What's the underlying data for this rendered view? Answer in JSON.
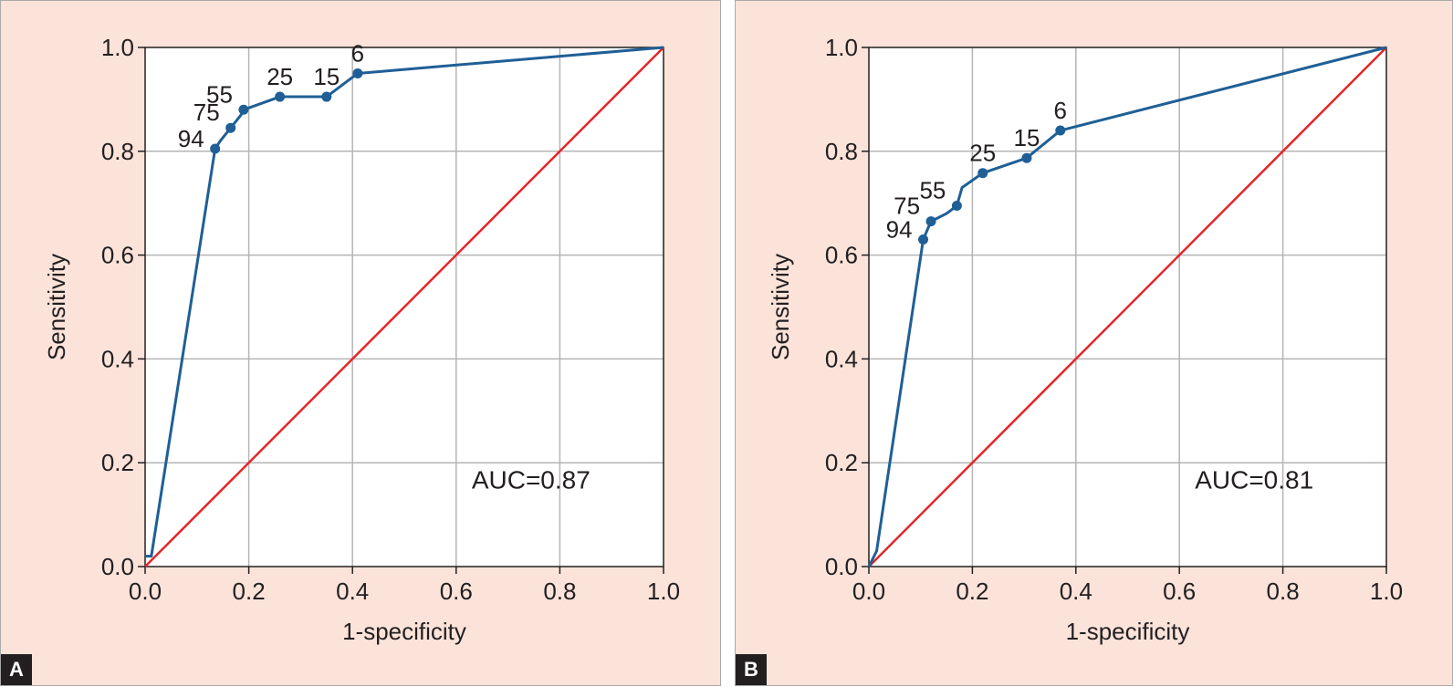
{
  "chart_data": [
    {
      "type": "line",
      "panel": "A",
      "xlabel": "1-specificity",
      "ylabel": "Sensitivity",
      "xlim": [
        0,
        1
      ],
      "ylim": [
        0,
        1
      ],
      "xticks": [
        "0.0",
        "0.2",
        "0.4",
        "0.6",
        "0.8",
        "1.0"
      ],
      "yticks": [
        "0.0",
        "0.2",
        "0.4",
        "0.6",
        "0.8",
        "1.0"
      ],
      "grid": true,
      "annotation": "AUC=0.87",
      "colors": {
        "roc": "#1f5f96",
        "reference": "#e3262b"
      },
      "roc_line": [
        [
          0.0,
          0.02
        ],
        [
          0.012,
          0.02
        ],
        [
          0.135,
          0.805
        ],
        [
          0.145,
          0.82
        ],
        [
          0.165,
          0.845
        ],
        [
          0.185,
          0.87
        ],
        [
          0.19,
          0.88
        ],
        [
          0.26,
          0.905
        ],
        [
          0.35,
          0.905
        ],
        [
          0.41,
          0.95
        ],
        [
          1.0,
          1.0
        ]
      ],
      "points": [
        {
          "label": "94",
          "x": 0.135,
          "y": 0.805
        },
        {
          "label": "75",
          "x": 0.165,
          "y": 0.845
        },
        {
          "label": "55",
          "x": 0.19,
          "y": 0.88
        },
        {
          "label": "25",
          "x": 0.26,
          "y": 0.905
        },
        {
          "label": "15",
          "x": 0.35,
          "y": 0.905
        },
        {
          "label": "6",
          "x": 0.41,
          "y": 0.95
        }
      ],
      "reference_line": [
        [
          0,
          0
        ],
        [
          1,
          1
        ]
      ]
    },
    {
      "type": "line",
      "panel": "B",
      "xlabel": "1-specificity",
      "ylabel": "Sensitivity",
      "xlim": [
        0,
        1
      ],
      "ylim": [
        0,
        1
      ],
      "xticks": [
        "0.0",
        "0.2",
        "0.4",
        "0.6",
        "0.8",
        "1.0"
      ],
      "yticks": [
        "0.0",
        "0.2",
        "0.4",
        "0.6",
        "0.8",
        "1.0"
      ],
      "grid": true,
      "annotation": "AUC=0.81",
      "colors": {
        "roc": "#1f5f96",
        "reference": "#e3262b"
      },
      "roc_line": [
        [
          0.0,
          0.0
        ],
        [
          0.015,
          0.03
        ],
        [
          0.105,
          0.63
        ],
        [
          0.12,
          0.665
        ],
        [
          0.15,
          0.68
        ],
        [
          0.17,
          0.695
        ],
        [
          0.18,
          0.73
        ],
        [
          0.22,
          0.758
        ],
        [
          0.305,
          0.787
        ],
        [
          0.37,
          0.84
        ],
        [
          1.0,
          1.0
        ]
      ],
      "points": [
        {
          "label": "94",
          "x": 0.105,
          "y": 0.63
        },
        {
          "label": "75",
          "x": 0.12,
          "y": 0.665
        },
        {
          "label": "55",
          "x": 0.17,
          "y": 0.695
        },
        {
          "label": "25",
          "x": 0.22,
          "y": 0.758
        },
        {
          "label": "15",
          "x": 0.305,
          "y": 0.787
        },
        {
          "label": "6",
          "x": 0.37,
          "y": 0.84
        }
      ],
      "reference_line": [
        [
          0,
          0
        ],
        [
          1,
          1
        ]
      ]
    }
  ]
}
